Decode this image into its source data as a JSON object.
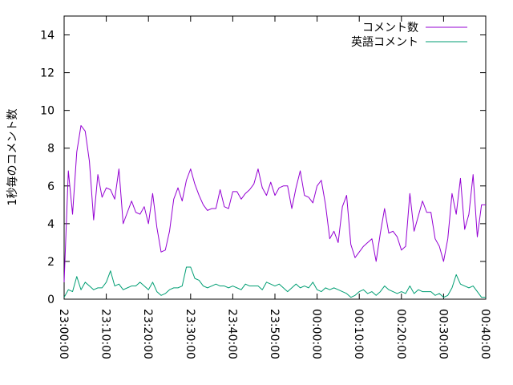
{
  "chart_data": {
    "type": "line",
    "ylabel": "1秒毎のコメント数",
    "xlabel": "",
    "title": "",
    "xlim": [
      "23:00:00",
      "00:40:00"
    ],
    "ylim": [
      0,
      15
    ],
    "y_ticks": [
      0,
      2,
      4,
      6,
      8,
      10,
      12,
      14
    ],
    "x_ticks": [
      "23:00:00",
      "23:10:00",
      "23:20:00",
      "23:30:00",
      "23:40:00",
      "23:50:00",
      "00:00:00",
      "00:10:00",
      "00:20:00",
      "00:30:00",
      "00:40:00"
    ],
    "x_tick_minutes": [
      0,
      10,
      20,
      30,
      40,
      50,
      60,
      70,
      80,
      90,
      100
    ],
    "x_label_rotation_deg": 90,
    "grid": false,
    "legend_position": "top-right",
    "series": [
      {
        "name": "コメント数",
        "color": "#9400d3",
        "x_minutes": [
          0,
          1,
          2,
          3,
          4,
          5,
          6,
          7,
          8,
          9,
          10,
          11,
          12,
          13,
          14,
          15,
          16,
          17,
          18,
          19,
          20,
          21,
          22,
          23,
          24,
          25,
          26,
          27,
          28,
          29,
          30,
          31,
          32,
          33,
          34,
          35,
          36,
          37,
          38,
          39,
          40,
          41,
          42,
          43,
          44,
          45,
          46,
          47,
          48,
          49,
          50,
          51,
          52,
          53,
          54,
          55,
          56,
          57,
          58,
          59,
          60,
          61,
          62,
          63,
          64,
          65,
          66,
          67,
          68,
          69,
          70,
          71,
          72,
          73,
          74,
          75,
          76,
          77,
          78,
          79,
          80,
          81,
          82,
          83,
          84,
          85,
          86,
          87,
          88,
          89,
          90,
          91,
          92,
          93,
          94,
          95,
          96,
          97,
          98,
          99,
          100
        ],
        "values": [
          0.9,
          6.8,
          4.5,
          7.8,
          9.2,
          8.9,
          7.3,
          4.2,
          6.6,
          5.4,
          5.9,
          5.8,
          5.3,
          6.9,
          4.0,
          4.6,
          5.2,
          4.6,
          4.5,
          4.9,
          4.0,
          5.6,
          3.8,
          2.5,
          2.6,
          3.6,
          5.3,
          5.9,
          5.2,
          6.3,
          6.9,
          6.1,
          5.5,
          5.0,
          4.7,
          4.8,
          4.8,
          5.8,
          4.9,
          4.8,
          5.7,
          5.7,
          5.3,
          5.6,
          5.8,
          6.1,
          6.9,
          5.9,
          5.5,
          6.2,
          5.5,
          5.9,
          6.0,
          6.0,
          4.8,
          5.9,
          6.8,
          5.5,
          5.4,
          5.1,
          6.0,
          6.3,
          5.0,
          3.2,
          3.6,
          3.0,
          4.9,
          5.5,
          2.9,
          2.2,
          2.5,
          2.8,
          3.0,
          3.2,
          2.0,
          3.5,
          4.8,
          3.5,
          3.6,
          3.3,
          2.6,
          2.8,
          5.6,
          3.6,
          4.4,
          5.2,
          4.6,
          4.6,
          3.2,
          2.8,
          2.0,
          3.2,
          5.6,
          4.5,
          6.4,
          3.7,
          4.5,
          6.6,
          3.3,
          5.0,
          5.0
        ]
      },
      {
        "name": "英語コメント",
        "color": "#009e73",
        "x_minutes": [
          0,
          1,
          2,
          3,
          4,
          5,
          6,
          7,
          8,
          9,
          10,
          11,
          12,
          13,
          14,
          15,
          16,
          17,
          18,
          19,
          20,
          21,
          22,
          23,
          24,
          25,
          26,
          27,
          28,
          29,
          30,
          31,
          32,
          33,
          34,
          35,
          36,
          37,
          38,
          39,
          40,
          41,
          42,
          43,
          44,
          45,
          46,
          47,
          48,
          49,
          50,
          51,
          52,
          53,
          54,
          55,
          56,
          57,
          58,
          59,
          60,
          61,
          62,
          63,
          64,
          65,
          66,
          67,
          68,
          69,
          70,
          71,
          72,
          73,
          74,
          75,
          76,
          77,
          78,
          79,
          80,
          81,
          82,
          83,
          84,
          85,
          86,
          87,
          88,
          89,
          90,
          91,
          92,
          93,
          94,
          95,
          96,
          97,
          98,
          99,
          100
        ],
        "values": [
          0.1,
          0.5,
          0.4,
          1.2,
          0.5,
          0.9,
          0.7,
          0.5,
          0.6,
          0.6,
          0.9,
          1.5,
          0.7,
          0.8,
          0.5,
          0.6,
          0.7,
          0.7,
          0.9,
          0.7,
          0.5,
          0.9,
          0.4,
          0.2,
          0.3,
          0.5,
          0.6,
          0.6,
          0.7,
          1.7,
          1.7,
          1.1,
          1.0,
          0.7,
          0.6,
          0.7,
          0.8,
          0.7,
          0.7,
          0.6,
          0.7,
          0.6,
          0.5,
          0.8,
          0.7,
          0.7,
          0.7,
          0.5,
          0.9,
          0.8,
          0.7,
          0.8,
          0.6,
          0.4,
          0.6,
          0.8,
          0.6,
          0.7,
          0.6,
          0.9,
          0.5,
          0.4,
          0.6,
          0.5,
          0.6,
          0.5,
          0.4,
          0.3,
          0.1,
          0.2,
          0.4,
          0.5,
          0.3,
          0.4,
          0.2,
          0.4,
          0.7,
          0.5,
          0.4,
          0.3,
          0.4,
          0.3,
          0.7,
          0.3,
          0.5,
          0.4,
          0.4,
          0.4,
          0.2,
          0.3,
          0.1,
          0.2,
          0.6,
          1.3,
          0.8,
          0.7,
          0.6,
          0.7,
          0.4,
          0.1,
          0.1
        ]
      }
    ]
  }
}
